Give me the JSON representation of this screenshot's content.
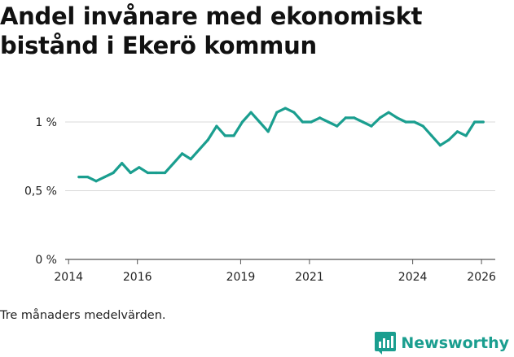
{
  "chart_data": {
    "type": "line",
    "title": "Andel invånare med ekonomiskt bistånd i Ekerö kommun",
    "xlabel": "",
    "ylabel": "",
    "ylim": [
      0,
      1.05
    ],
    "yticks": [
      0,
      0.5,
      1
    ],
    "ytick_labels": [
      "0 %",
      "0,5 %",
      "1 %"
    ],
    "xlim": [
      2013.9,
      2026.4
    ],
    "xticks": [
      2014,
      2016,
      2019,
      2021,
      2024,
      2026
    ],
    "xtick_labels": [
      "2014",
      "2016",
      "2019",
      "2021",
      "2024",
      "2026"
    ],
    "grid": true,
    "series": [
      {
        "name": "Andel invånare med ekonomiskt bistånd",
        "color": "#1a9e8f",
        "x": [
          2014.3,
          2014.55,
          2014.8,
          2015.05,
          2015.3,
          2015.55,
          2015.8,
          2016.05,
          2016.3,
          2016.55,
          2016.8,
          2017.05,
          2017.3,
          2017.55,
          2017.8,
          2018.05,
          2018.3,
          2018.55,
          2018.8,
          2019.05,
          2019.3,
          2019.55,
          2019.8,
          2020.05,
          2020.3,
          2020.55,
          2020.8,
          2021.05,
          2021.3,
          2021.55,
          2021.8,
          2022.05,
          2022.3,
          2022.55,
          2022.8,
          2023.05,
          2023.3,
          2023.55,
          2023.8,
          2024.05,
          2024.3,
          2024.55,
          2024.8,
          2025.05,
          2025.3,
          2025.55,
          2025.8,
          2026.05
        ],
        "values": [
          0.6,
          0.6,
          0.57,
          0.6,
          0.63,
          0.7,
          0.63,
          0.67,
          0.63,
          0.63,
          0.63,
          0.7,
          0.77,
          0.73,
          0.8,
          0.87,
          0.97,
          0.9,
          0.9,
          1.0,
          1.07,
          1.0,
          0.93,
          1.07,
          1.1,
          1.07,
          1.0,
          1.0,
          1.03,
          1.0,
          0.97,
          1.03,
          1.03,
          1.0,
          0.97,
          1.03,
          1.07,
          1.03,
          1.0,
          1.0,
          0.97,
          0.9,
          0.83,
          0.87,
          0.93,
          0.9,
          1.0,
          1.0
        ]
      }
    ]
  },
  "footnote": "Tre månaders medelvärden.",
  "brand": {
    "name": "Newsworthy",
    "icon": "bar-chart-logo-icon",
    "color": "#1a9e8f"
  }
}
